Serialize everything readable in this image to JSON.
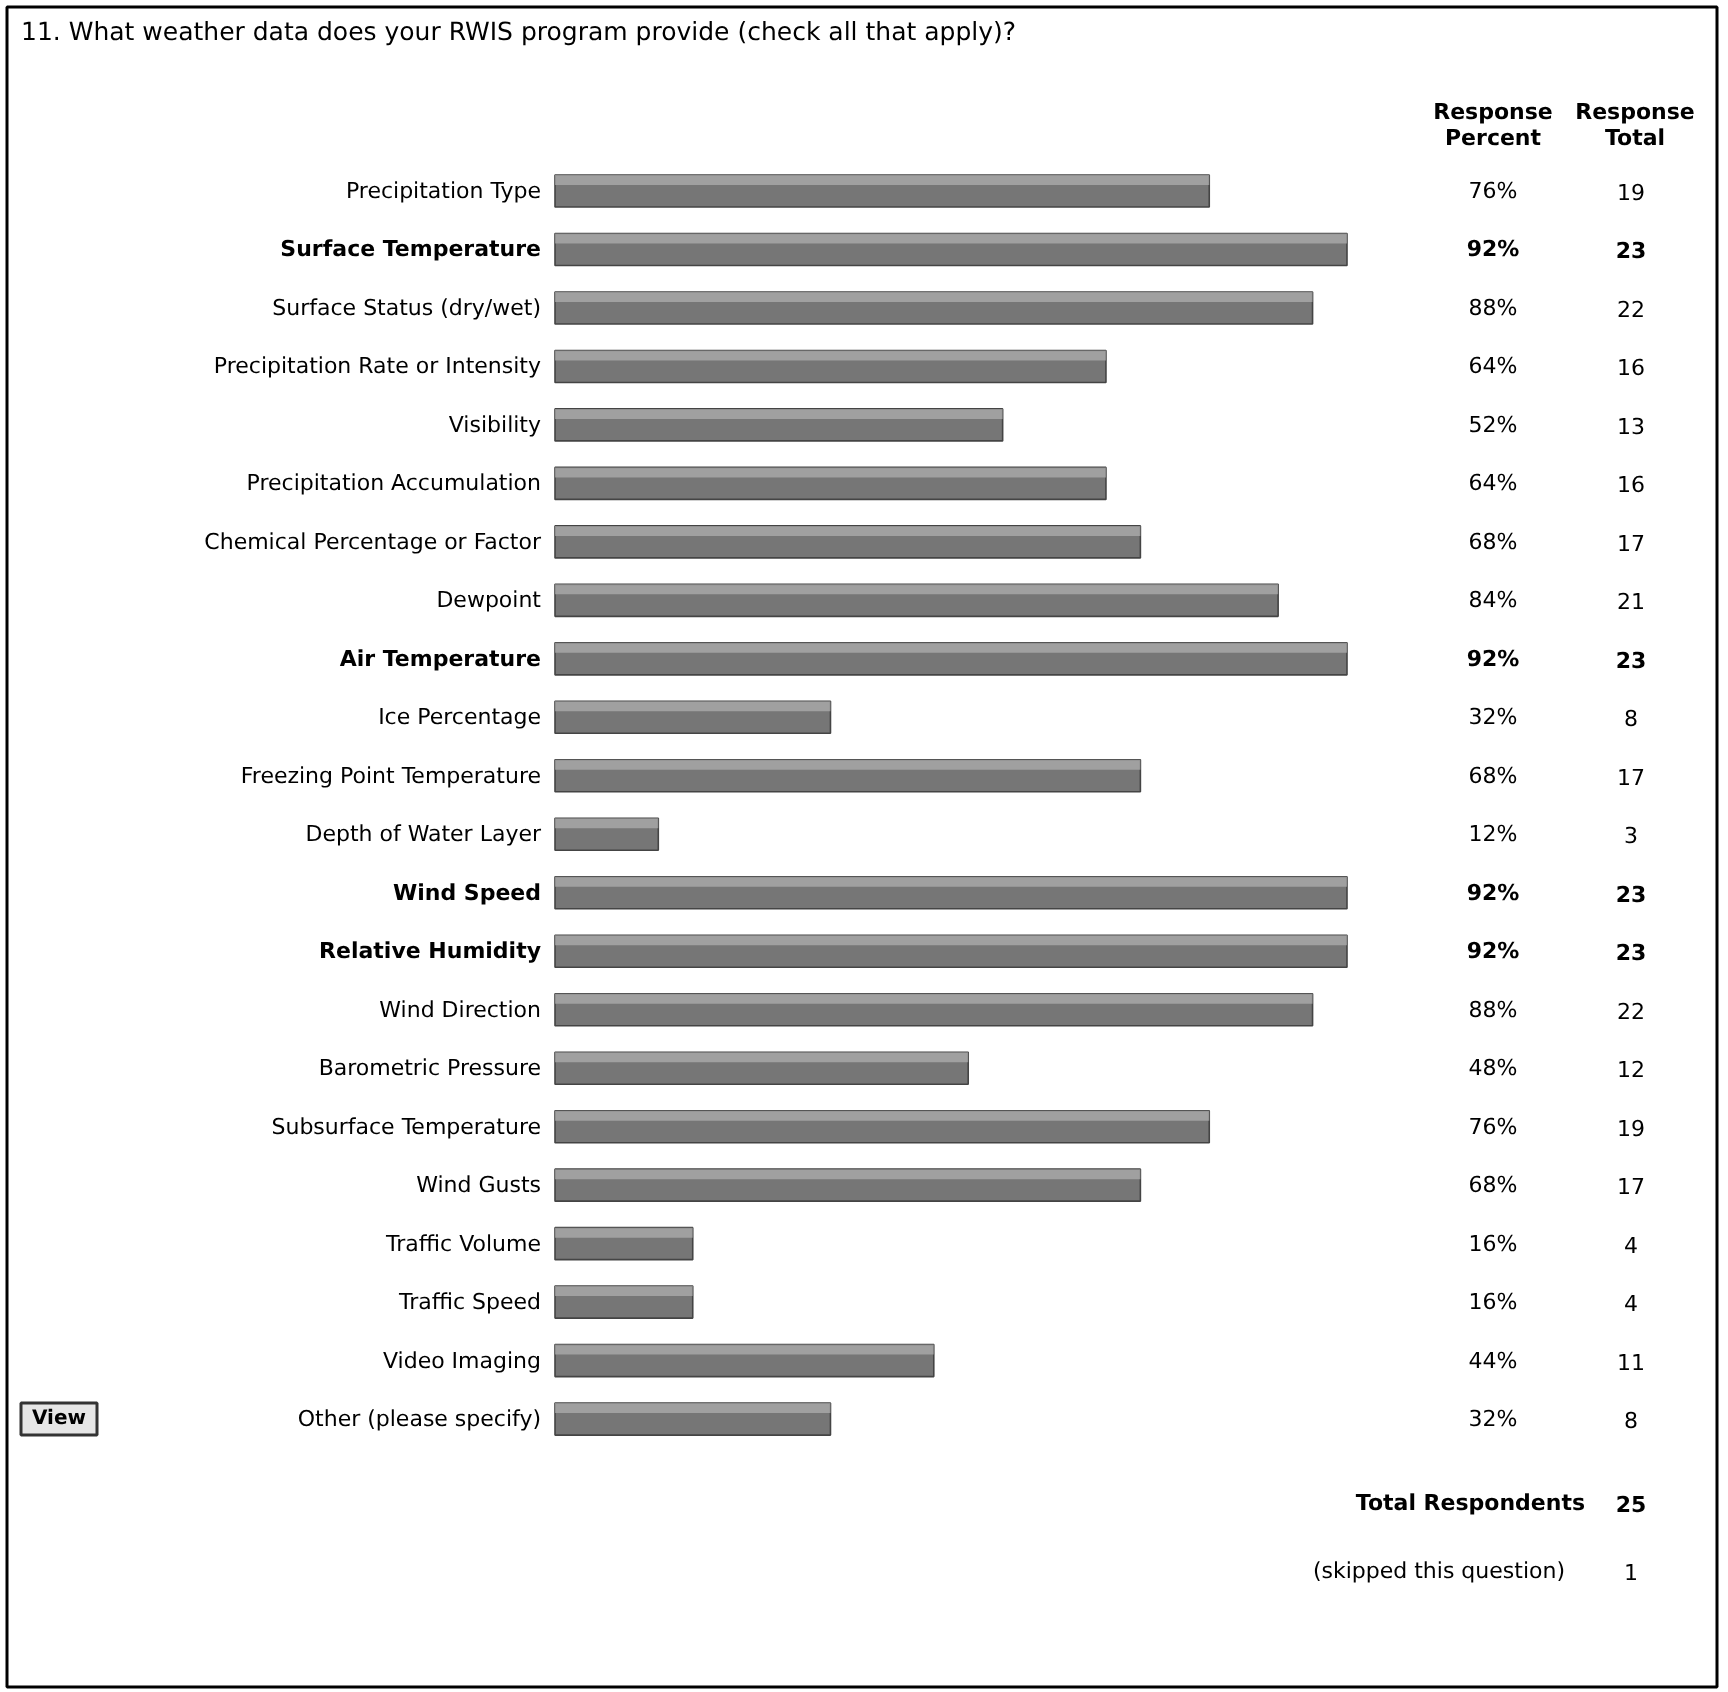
{
  "chart_data": {
    "type": "bar",
    "orientation": "horizontal",
    "title": "11. What weather data does your RWIS program provide (check all that apply)?",
    "categories": [
      "Precipitation Type",
      "Surface Temperature",
      "Surface Status (dry/wet)",
      "Precipitation Rate or Intensity",
      "Visibility",
      "Precipitation Accumulation",
      "Chemical Percentage or Factor",
      "Dewpoint",
      "Air Temperature",
      "Ice Percentage",
      "Freezing Point Temperature",
      "Depth of Water Layer",
      "Wind Speed",
      "Relative Humidity",
      "Wind Direction",
      "Barometric Pressure",
      "Subsurface Temperature",
      "Wind Gusts",
      "Traffic Volume",
      "Traffic Speed",
      "Video Imaging",
      "Other (please specify)"
    ],
    "values": [
      76,
      92,
      88,
      64,
      52,
      64,
      68,
      84,
      92,
      32,
      68,
      12,
      92,
      92,
      88,
      48,
      76,
      68,
      16,
      16,
      44,
      32
    ],
    "value_labels": [
      "76%",
      "92%",
      "88%",
      "64%",
      "52%",
      "64%",
      "68%",
      "84%",
      "92%",
      "32%",
      "68%",
      "12%",
      "92%",
      "92%",
      "88%",
      "48%",
      "76%",
      "68%",
      "16%",
      "16%",
      "44%",
      "32%"
    ],
    "color": "#767676",
    "tick_labels": false,
    "annotations": [
      "Response Percent",
      "Response Total",
      "Total Respondents",
      "25",
      "(skipped this question)",
      "1",
      "View",
      "19",
      "23",
      "22",
      "16",
      "13",
      "16",
      "17",
      "21",
      "23",
      "8",
      "17",
      "3",
      "23",
      "23",
      "22",
      "12",
      "19",
      "17",
      "4",
      "4",
      "11",
      "8"
    ]
  }
}
